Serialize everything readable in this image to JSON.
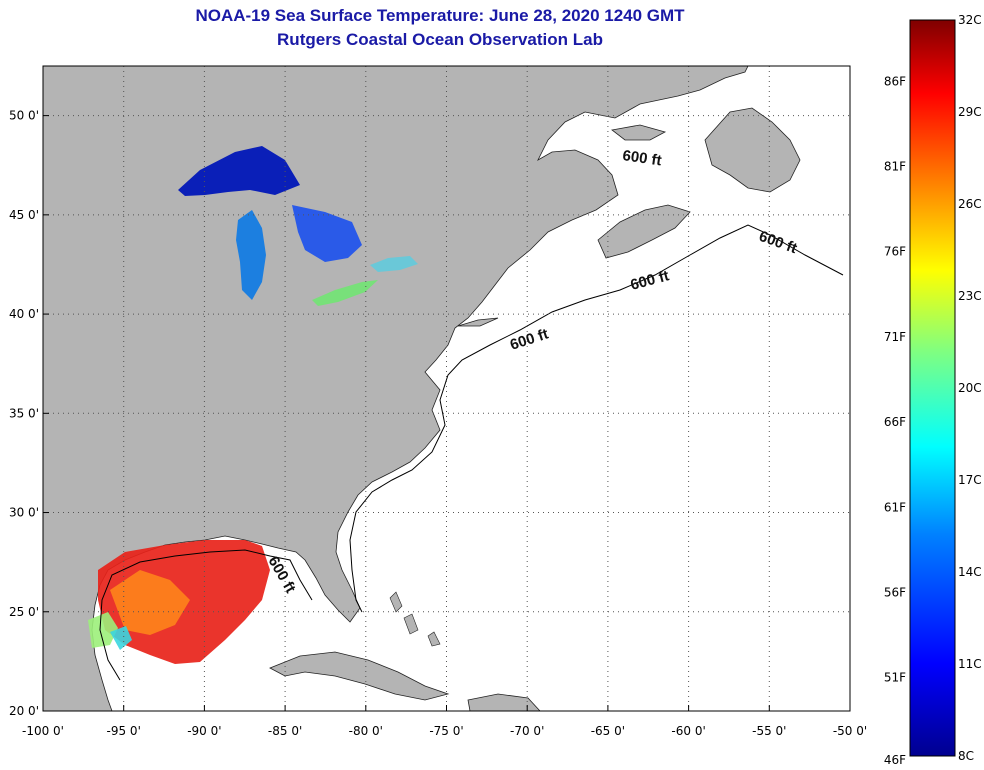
{
  "title_line1": "NOAA-19 Sea Surface Temperature:  June 28, 2020 1240 GMT",
  "title_line2": "Rutgers Coastal Ocean Observation Lab",
  "map": {
    "lon_range": [
      -100,
      -50
    ],
    "lat_range": [
      20,
      52.5
    ],
    "lon_ticks": [
      "-100 0'",
      "-95 0'",
      "-90 0'",
      "-85 0'",
      "-80 0'",
      "-75 0'",
      "-70 0'",
      "-65 0'",
      "-60 0'",
      "-55 0'",
      "-50 0'"
    ],
    "lat_ticks": [
      "20 0'",
      "25 0'",
      "30 0'",
      "35 0'",
      "40 0'",
      "45 0'",
      "50 0'"
    ],
    "contour_label": "600 ft",
    "colors": {
      "land": "#b4b4b4",
      "ocean": "#ffffff",
      "grid": "#555555",
      "title": "#1a1aa6"
    }
  },
  "colorbar": {
    "celsius": [
      "32C",
      "29C",
      "26C",
      "23C",
      "20C",
      "17C",
      "14C",
      "11C",
      "8C"
    ],
    "fahrenheit": [
      "86F",
      "81F",
      "76F",
      "71F",
      "66F",
      "61F",
      "56F",
      "51F",
      "46F"
    ],
    "range_c": [
      8,
      32
    ],
    "colormap": [
      "#7f0000",
      "#ff0000",
      "#ff8000",
      "#ffff00",
      "#80ff80",
      "#00ffff",
      "#0080ff",
      "#0000ff",
      "#00008f"
    ]
  }
}
